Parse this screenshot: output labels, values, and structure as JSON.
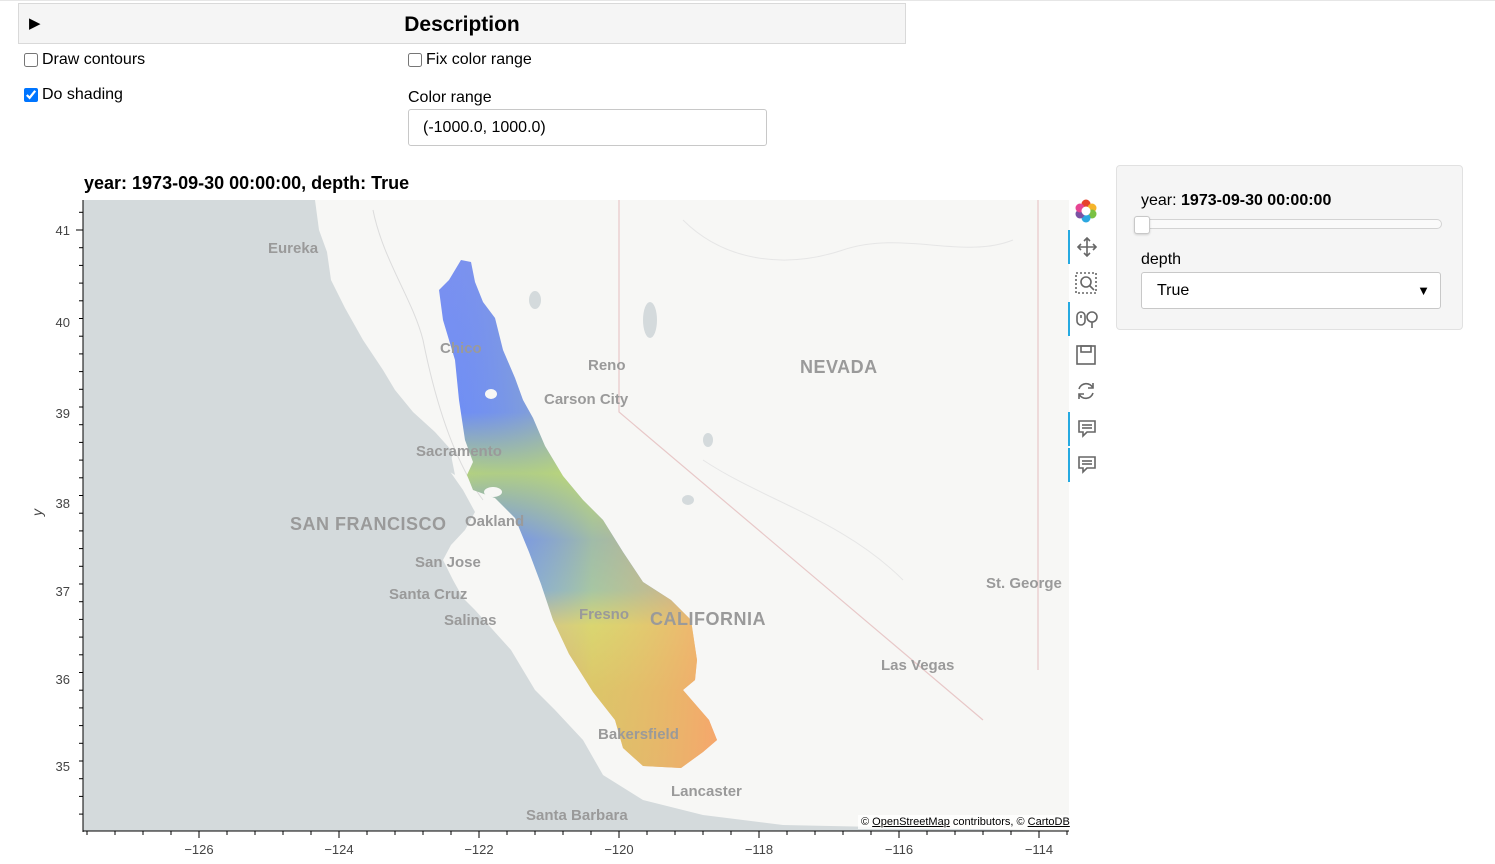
{
  "description": {
    "toggle_icon": "▶",
    "title": "Description"
  },
  "widgets": {
    "draw_contours": {
      "label": "Draw contours",
      "checked": false
    },
    "fix_color_range": {
      "label": "Fix color range",
      "checked": false
    },
    "do_shading": {
      "label": "Do shading",
      "checked": true
    },
    "color_range": {
      "label": "Color range",
      "value": "(-1000.0, 1000.0)"
    }
  },
  "plot": {
    "title": "year: 1973-09-30 00:00:00, depth: True",
    "ylabel": "y",
    "x_ticks": [
      "−126",
      "−124",
      "−122",
      "−120",
      "−118",
      "−116",
      "−114"
    ],
    "y_ticks": [
      "41",
      "40",
      "39",
      "38",
      "37",
      "36",
      "35"
    ],
    "attribution_prefix": "© ",
    "attribution_osm": "OpenStreetMap",
    "attribution_mid": " contributors, © ",
    "attribution_carto": "CartoDB",
    "map_labels": {
      "eureka": "Eureka",
      "chico": "Chico",
      "reno": "Reno",
      "nevada": "NEVADA",
      "carson_city": "Carson City",
      "sacramento": "Sacramento",
      "san_francisco": "SAN FRANCISCO",
      "oakland": "Oakland",
      "san_jose": "San Jose",
      "santa_cruz": "Santa Cruz",
      "salinas": "Salinas",
      "fresno": "Fresno",
      "california": "CALIFORNIA",
      "st_george": "St. George",
      "las_vegas": "Las Vegas",
      "bakersfield": "Bakersfield",
      "lancaster": "Lancaster",
      "santa_barbara": "Santa Barbara"
    }
  },
  "toolbar": {
    "tools": [
      "bokeh-logo-icon",
      "pan-icon",
      "box-zoom-icon",
      "wheel-zoom-icon",
      "save-icon",
      "reset-icon",
      "hover-icon",
      "hover-icon"
    ]
  },
  "panel": {
    "year_label": "year: ",
    "year_value": "1973-09-30 00:00:00",
    "year_slider_fraction": 0.0,
    "depth_label": "depth",
    "depth_value": "True",
    "depth_caret": "▼"
  },
  "colors": {
    "ocean": "#d4dadc",
    "land": "#f7f7f5",
    "accent": "#26aae1",
    "checkbox": "#0075ff"
  }
}
